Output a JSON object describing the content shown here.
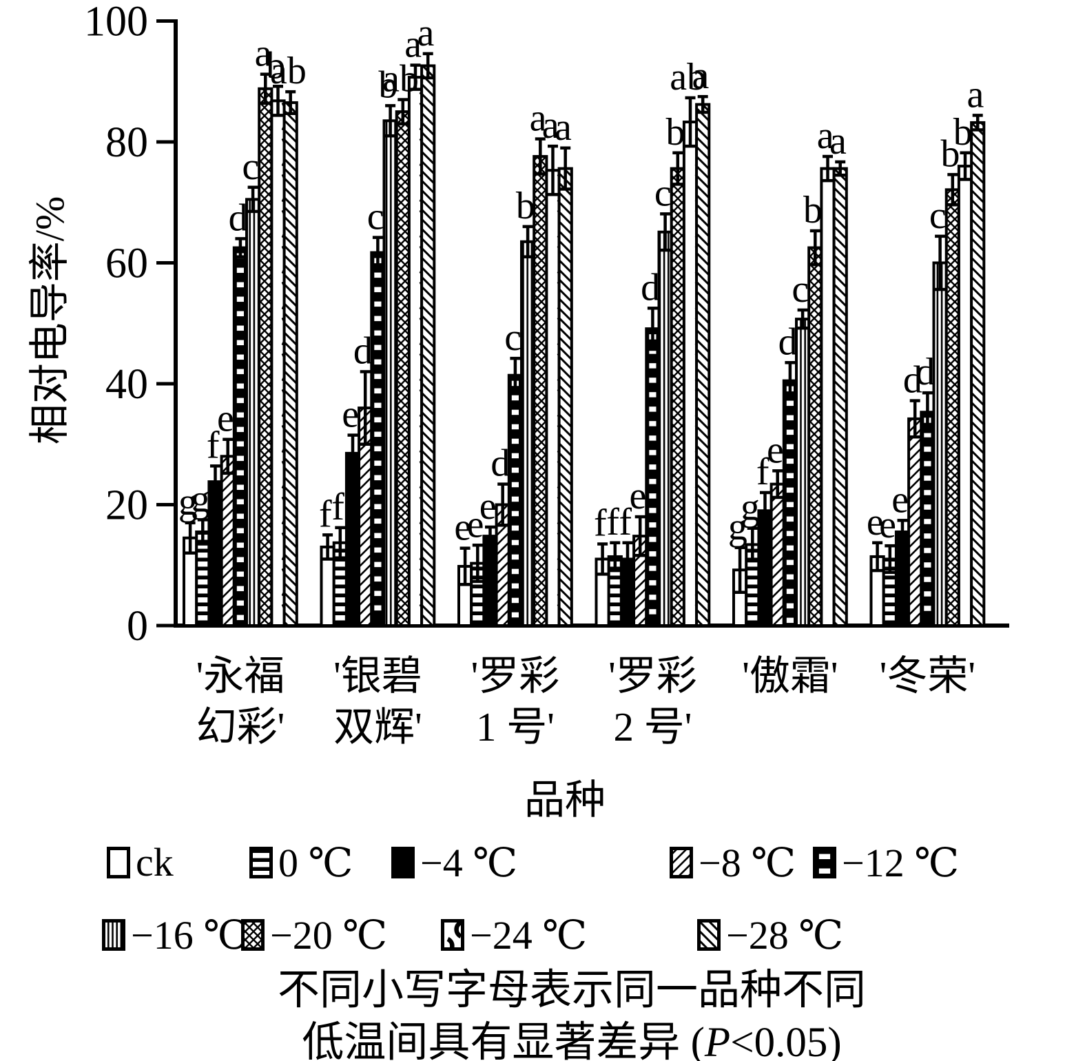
{
  "chart_data": {
    "type": "bar",
    "title": "",
    "ylabel": "相对电导率/%",
    "xlabel": "品种",
    "ylim": [
      0,
      100
    ],
    "yticks": [
      0,
      20,
      40,
      60,
      80,
      100
    ],
    "grid": false,
    "legend_position": "bottom",
    "categories": [
      "'永福幻彩'",
      "'银碧双辉'",
      "'罗彩1号'",
      "'罗彩2号'",
      "'傲霜'",
      "'冬荣'"
    ],
    "group_label_lines": [
      [
        "'永福",
        "幻彩'"
      ],
      [
        "'银碧",
        "双辉'"
      ],
      [
        "'罗彩",
        "1 号'"
      ],
      [
        "'罗彩",
        "2 号'"
      ],
      [
        "'傲霜'"
      ],
      [
        "'冬荣'"
      ]
    ],
    "series": [
      {
        "name": "ck",
        "pattern": "plain",
        "values": [
          14.5,
          13.0,
          9.8,
          11.0,
          9.2,
          11.4
        ],
        "errors": [
          2.5,
          2.0,
          3.0,
          2.5,
          3.7,
          2.3
        ],
        "letters": [
          "g",
          "f",
          "e",
          "f",
          "g",
          "e"
        ]
      },
      {
        "name": "0 ℃",
        "pattern": "hlines",
        "values": [
          15.5,
          13.7,
          10.3,
          11.4,
          13.4,
          11.0
        ],
        "errors": [
          2.0,
          2.5,
          3.0,
          2.3,
          2.7,
          2.2
        ],
        "letters": [
          "g",
          "f",
          "e",
          "f",
          "g",
          "e"
        ]
      },
      {
        "name": "−4 ℃",
        "pattern": "solid",
        "values": [
          23.8,
          28.5,
          14.8,
          11.0,
          19.0,
          15.5
        ],
        "errors": [
          2.6,
          3.0,
          1.5,
          2.7,
          3.0,
          1.9
        ],
        "letters": [
          "f",
          "e",
          "e",
          "f",
          "f",
          "e"
        ]
      },
      {
        "name": "−8 ℃",
        "pattern": "diag",
        "values": [
          28.0,
          36.0,
          20.0,
          14.8,
          23.4,
          34.2
        ],
        "errors": [
          2.8,
          6.0,
          3.4,
          3.2,
          2.2,
          3.0
        ],
        "letters": [
          "e",
          "d",
          "d",
          "e",
          "e",
          "d"
        ]
      },
      {
        "name": "−12 ℃",
        "pattern": "dash-black",
        "values": [
          62.5,
          61.7,
          41.4,
          49.1,
          40.5,
          35.3
        ],
        "errors": [
          1.5,
          2.5,
          2.8,
          3.4,
          3.0,
          3.2
        ],
        "letters": [
          "d",
          "c",
          "c",
          "d",
          "d",
          "d"
        ]
      },
      {
        "name": "−16 ℃",
        "pattern": "vlines",
        "values": [
          70.5,
          83.5,
          63.5,
          65.1,
          50.7,
          60.0
        ],
        "errors": [
          2.0,
          2.5,
          2.5,
          3.0,
          1.5,
          4.4
        ],
        "letters": [
          "c",
          "b",
          "b",
          "c",
          "c",
          "c"
        ]
      },
      {
        "name": "−20 ℃",
        "pattern": "crosshatch",
        "values": [
          88.8,
          85.0,
          77.6,
          75.6,
          62.5,
          72.1
        ],
        "errors": [
          2.4,
          2.0,
          2.9,
          2.6,
          2.8,
          2.5
        ],
        "letters": [
          "a",
          "ab",
          "a",
          "b",
          "b",
          "b"
        ]
      },
      {
        "name": "−24 ℃",
        "pattern": "brick",
        "values": [
          86.8,
          90.7,
          75.3,
          83.3,
          75.6,
          76.0
        ],
        "errors": [
          2.4,
          2.0,
          4.0,
          4.0,
          2.0,
          2.2
        ],
        "letters": [
          "b",
          "a",
          "a",
          "ab",
          "a",
          "b"
        ]
      },
      {
        "name": "−28 ℃",
        "pattern": "backdiag",
        "values": [
          86.5,
          92.6,
          75.6,
          86.2,
          75.6,
          83.2
        ],
        "errors": [
          1.8,
          2.0,
          3.4,
          1.3,
          1.1,
          1.2
        ],
        "letters": [
          "ab",
          "a",
          "a",
          "a",
          "a",
          "a"
        ]
      }
    ],
    "legend_rows": [
      [
        0,
        1,
        2,
        3,
        4
      ],
      [
        5,
        6,
        7,
        8
      ]
    ],
    "note_lines": [
      "不同小写字母表示同一品种不同",
      "低温间具有显著差异 (P<0.05)"
    ]
  },
  "footer": {
    "line2_prefix": "低温间具有显著差异 (",
    "line2_p": "P",
    "line2_suffix": "<0.05)"
  },
  "colors": {
    "ink": "#000000",
    "background": "#ffffff"
  }
}
